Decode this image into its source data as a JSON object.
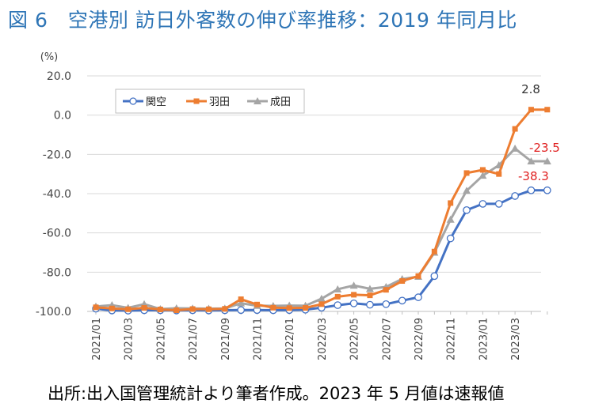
{
  "title": "図 6　空港別  訪日外客数の伸び率推移：2019 年同月比",
  "source": "出所:出入国管理統計より筆者作成。2023 年 5 月値は速報値",
  "chart_data": {
    "type": "line",
    "ylabel": "(%)",
    "ylim": [
      -100,
      20
    ],
    "yticks": [
      "20.0",
      "0.0",
      "-20.0",
      "-40.0",
      "-60.0",
      "-80.0",
      "-100.0"
    ],
    "ytick_values": [
      20,
      0,
      -20,
      -40,
      -60,
      -80,
      -100
    ],
    "categories": [
      "2021/01",
      "2021/02",
      "2021/03",
      "2021/04",
      "2021/05",
      "2021/06",
      "2021/07",
      "2021/08",
      "2021/09",
      "2021/10",
      "2021/11",
      "2021/12",
      "2022/01",
      "2022/02",
      "2022/03",
      "2022/04",
      "2022/05",
      "2022/06",
      "2022/07",
      "2022/08",
      "2022/09",
      "2022/10",
      "2022/11",
      "2022/12",
      "2023/01",
      "2023/02",
      "2023/03",
      "2023/04",
      "2023/05"
    ],
    "xtick_labels": [
      "2021/01",
      "2021/03",
      "2021/05",
      "2021/07",
      "2021/09",
      "2021/11",
      "2022/01",
      "2022/03",
      "2022/05",
      "2022/07",
      "2022/09",
      "2022/11",
      "2023/01",
      "2023/03"
    ],
    "grid": "horizontal",
    "legend_position": "top-left",
    "series": [
      {
        "name": "関空",
        "color": "#4472c4",
        "marker": "circle",
        "values": [
          -98.6,
          -99.5,
          -99.6,
          -99.4,
          -99.4,
          -99.5,
          -99.4,
          -99.5,
          -99.4,
          -99.3,
          -99.3,
          -99.4,
          -99.3,
          -99.1,
          -98.1,
          -96.8,
          -95.9,
          -96.6,
          -96.3,
          -94.5,
          -92.8,
          -82.0,
          -62.8,
          -48.4,
          -45.2,
          -45.2,
          -41.2,
          -38.3,
          -38.3
        ]
      },
      {
        "name": "羽田",
        "color": "#ed7d31",
        "marker": "square",
        "values": [
          -97.9,
          -98.5,
          -98.9,
          -98.2,
          -99.0,
          -99.4,
          -98.8,
          -98.9,
          -98.7,
          -93.8,
          -96.5,
          -98.1,
          -98.3,
          -98.2,
          -96.3,
          -92.5,
          -91.5,
          -91.8,
          -89.0,
          -84.5,
          -82.0,
          -69.5,
          -44.8,
          -29.5,
          -27.9,
          -30.0,
          -7.0,
          2.8,
          2.8
        ]
      },
      {
        "name": "成田",
        "color": "#a5a5a5",
        "marker": "triangle",
        "values": [
          -97.5,
          -96.8,
          -98.2,
          -96.3,
          -98.8,
          -98.4,
          -98.5,
          -98.6,
          -98.5,
          -95.8,
          -97.1,
          -97.2,
          -97.0,
          -97.1,
          -93.5,
          -88.7,
          -86.8,
          -88.5,
          -87.5,
          -83.5,
          -82.3,
          -70.0,
          -53.2,
          -38.5,
          -30.8,
          -25.5,
          -17.0,
          -23.5,
          -23.5
        ]
      }
    ],
    "annotations": [
      {
        "text": "2.8",
        "color": "#333333"
      },
      {
        "text": "-23.5",
        "color": "#e02020"
      },
      {
        "text": "-38.3",
        "color": "#e02020"
      }
    ]
  }
}
